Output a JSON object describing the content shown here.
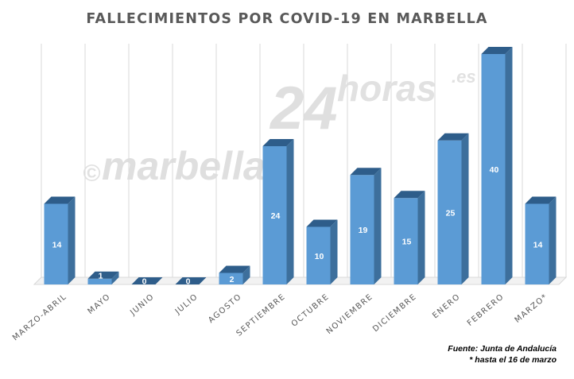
{
  "chart_data": {
    "type": "bar",
    "title": "FALLECIMIENTOS POR COVID-19 EN MARBELLA",
    "categories": [
      "MARZO-ABRIL",
      "MAYO",
      "JUNIO",
      "JULIO",
      "AGOSTO",
      "SEPTIEMBRE",
      "OCTUBRE",
      "NOVIEMBRE",
      "DICIEMBRE",
      "ENERO",
      "FEBRERO",
      "MARZO*"
    ],
    "values": [
      14,
      1,
      0,
      0,
      2,
      24,
      10,
      19,
      15,
      25,
      40,
      14
    ],
    "ylim": [
      0,
      40
    ],
    "grid": true,
    "bar_color": "#5b9bd5",
    "bar_side_color": "#3d6f9c",
    "bar_top_color": "#2e5d8a",
    "three_d": true,
    "data_labels": true
  },
  "source": {
    "line1": "Fuente: Junta de Andalucía",
    "line2": "* hasta el 16 de marzo"
  },
  "watermark": {
    "copyright": "©",
    "name": "marbella",
    "number": "24",
    "word": "horas",
    "domain": ".es"
  }
}
